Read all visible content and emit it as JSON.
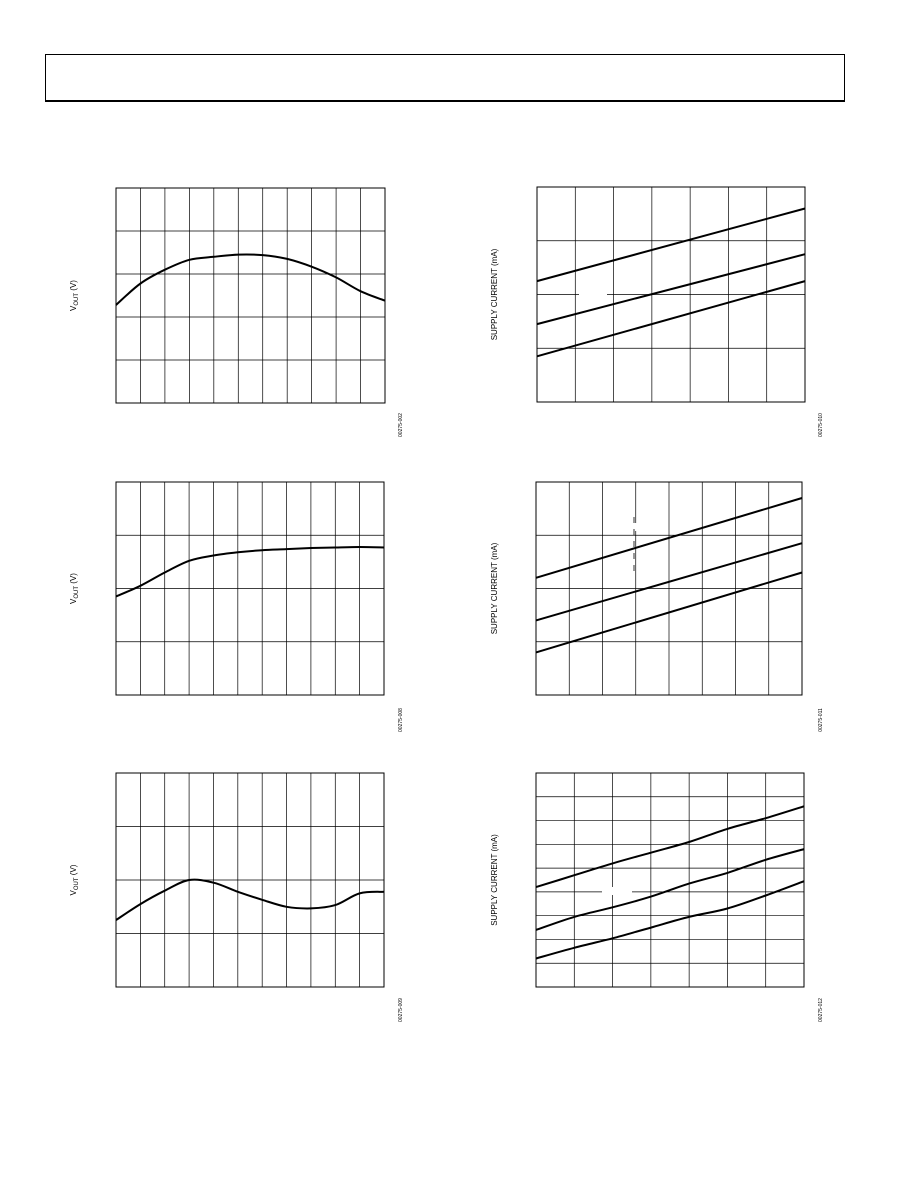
{
  "page": {
    "header_box": ""
  },
  "chart_data": [
    {
      "id": "vout-1",
      "type": "line",
      "ylabel_main": "V",
      "ylabel_sub": "OUT",
      "ylabel_unit": " (V)",
      "figure_code": "00275-002",
      "grid": true,
      "grid_cols": 11,
      "grid_rows": 5,
      "xlim": [
        0,
        11
      ],
      "ylim": [
        0,
        5
      ],
      "series": [
        {
          "x": [
            0,
            1,
            2,
            3,
            4,
            5,
            6,
            7,
            8,
            9,
            10,
            11
          ],
          "y": [
            2.28,
            2.78,
            3.1,
            3.33,
            3.4,
            3.45,
            3.44,
            3.35,
            3.17,
            2.92,
            2.6,
            2.38
          ]
        }
      ]
    },
    {
      "id": "supply-1",
      "type": "line",
      "ylabel_main": "SUPPLY CURRENT (mA)",
      "figure_code": "00275-010",
      "grid": true,
      "grid_cols": 7,
      "grid_rows": 4,
      "xlim": [
        0,
        7
      ],
      "ylim": [
        0,
        4
      ],
      "series": [
        {
          "x": [
            0,
            7
          ],
          "y": [
            2.25,
            3.6
          ]
        },
        {
          "x": [
            0,
            7
          ],
          "y": [
            1.45,
            2.75
          ]
        },
        {
          "x": [
            0,
            7
          ],
          "y": [
            0.85,
            2.25
          ]
        }
      ]
    },
    {
      "id": "vout-2",
      "type": "line",
      "ylabel_main": "V",
      "ylabel_sub": "OUT",
      "ylabel_unit": " (V)",
      "figure_code": "00275-008",
      "grid": true,
      "grid_cols": 11,
      "grid_rows": 4,
      "xlim": [
        0,
        11
      ],
      "ylim": [
        0,
        4
      ],
      "series": [
        {
          "x": [
            0,
            1,
            2,
            3,
            4,
            5,
            6,
            7,
            8,
            9,
            10,
            11
          ],
          "y": [
            1.85,
            2.05,
            2.3,
            2.52,
            2.62,
            2.68,
            2.72,
            2.74,
            2.76,
            2.77,
            2.78,
            2.77
          ]
        }
      ]
    },
    {
      "id": "supply-2",
      "type": "line",
      "ylabel_main": "SUPPLY CURRENT (mA)",
      "figure_code": "00275-011",
      "grid": true,
      "grid_cols": 8,
      "grid_rows": 4,
      "xlim": [
        0,
        8
      ],
      "ylim": [
        0,
        4
      ],
      "series": [
        {
          "x": [
            0,
            8
          ],
          "y": [
            2.2,
            3.7
          ]
        },
        {
          "x": [
            0,
            8
          ],
          "y": [
            1.4,
            2.85
          ]
        },
        {
          "x": [
            0,
            8
          ],
          "y": [
            0.8,
            2.3
          ]
        }
      ]
    },
    {
      "id": "vout-3",
      "type": "line",
      "ylabel_main": "V",
      "ylabel_sub": "OUT",
      "ylabel_unit": " (V)",
      "figure_code": "00275-009",
      "grid": true,
      "grid_cols": 11,
      "grid_rows": 4,
      "xlim": [
        0,
        11
      ],
      "ylim": [
        0,
        4
      ],
      "series": [
        {
          "x": [
            0,
            1,
            2,
            3,
            4,
            5,
            6,
            7,
            8,
            9,
            10,
            11
          ],
          "y": [
            1.25,
            1.55,
            1.8,
            2.0,
            1.95,
            1.78,
            1.63,
            1.5,
            1.47,
            1.53,
            1.75,
            1.78
          ]
        }
      ]
    },
    {
      "id": "supply-3",
      "type": "line",
      "ylabel_main": "SUPPLY CURRENT (mA)",
      "figure_code": "00275-012",
      "grid": true,
      "grid_cols": 7,
      "grid_rows": 9,
      "xlim": [
        0,
        7
      ],
      "ylim": [
        0,
        9
      ],
      "series": [
        {
          "x": [
            0,
            1,
            2,
            3,
            4,
            5,
            6,
            7
          ],
          "y": [
            4.2,
            4.7,
            5.2,
            5.65,
            6.1,
            6.65,
            7.1,
            7.6
          ]
        },
        {
          "x": [
            0,
            1,
            2,
            3,
            4,
            5,
            6,
            7
          ],
          "y": [
            2.4,
            2.95,
            3.35,
            3.8,
            4.35,
            4.8,
            5.35,
            5.8
          ]
        },
        {
          "x": [
            0,
            1,
            2,
            3,
            4,
            5,
            6,
            7
          ],
          "y": [
            1.2,
            1.65,
            2.05,
            2.5,
            2.95,
            3.3,
            3.85,
            4.45
          ]
        }
      ]
    }
  ]
}
